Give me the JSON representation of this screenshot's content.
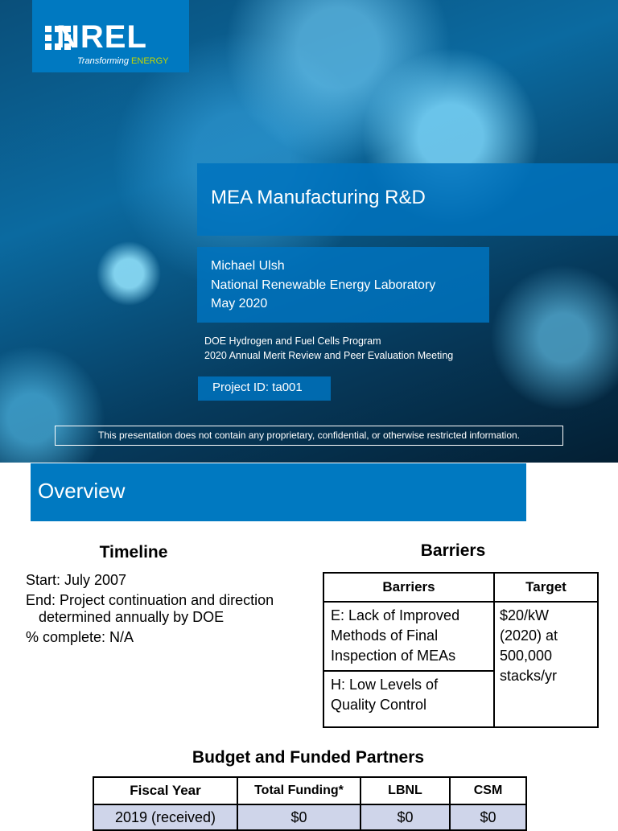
{
  "slide1": {
    "logo": {
      "name": "NREL",
      "tagline": "Transforming",
      "tagline_accent": "ENERGY"
    },
    "title": "MEA Manufacturing R&D",
    "author": [
      "Michael Ulsh",
      "National Renewable Energy Laboratory",
      "May 2020"
    ],
    "program": [
      "DOE Hydrogen and Fuel Cells Program",
      "2020 Annual Merit Review and Peer Evaluation Meeting"
    ],
    "project_id": "Project ID: ta001",
    "disclaimer": "This presentation does not contain any proprietary, confidential, or otherwise restricted information."
  },
  "slide2": {
    "title": "Overview",
    "timeline": {
      "heading": "Timeline",
      "items": [
        "Start: July 2007",
        "End: Project continuation and direction determined annually by DOE",
        "% complete: N/A"
      ]
    },
    "barriers": {
      "heading": "Barriers",
      "table": {
        "header": [
          "Barriers",
          "Target"
        ],
        "rows": [
          [
            "E: Lack of Improved Methods of Final Inspection of MEAs",
            "$20/kW (2020) at 500,000 stacks/yr"
          ],
          [
            "H: Low Levels of Quality Control"
          ]
        ]
      }
    },
    "budget": {
      "heading": "Budget and Funded Partners",
      "table": {
        "header": [
          "Fiscal Year",
          "Total Funding*",
          "LBNL",
          "CSM"
        ],
        "rows": [
          [
            "2019 (received)",
            "$0",
            "$0",
            "$0"
          ]
        ]
      }
    }
  }
}
